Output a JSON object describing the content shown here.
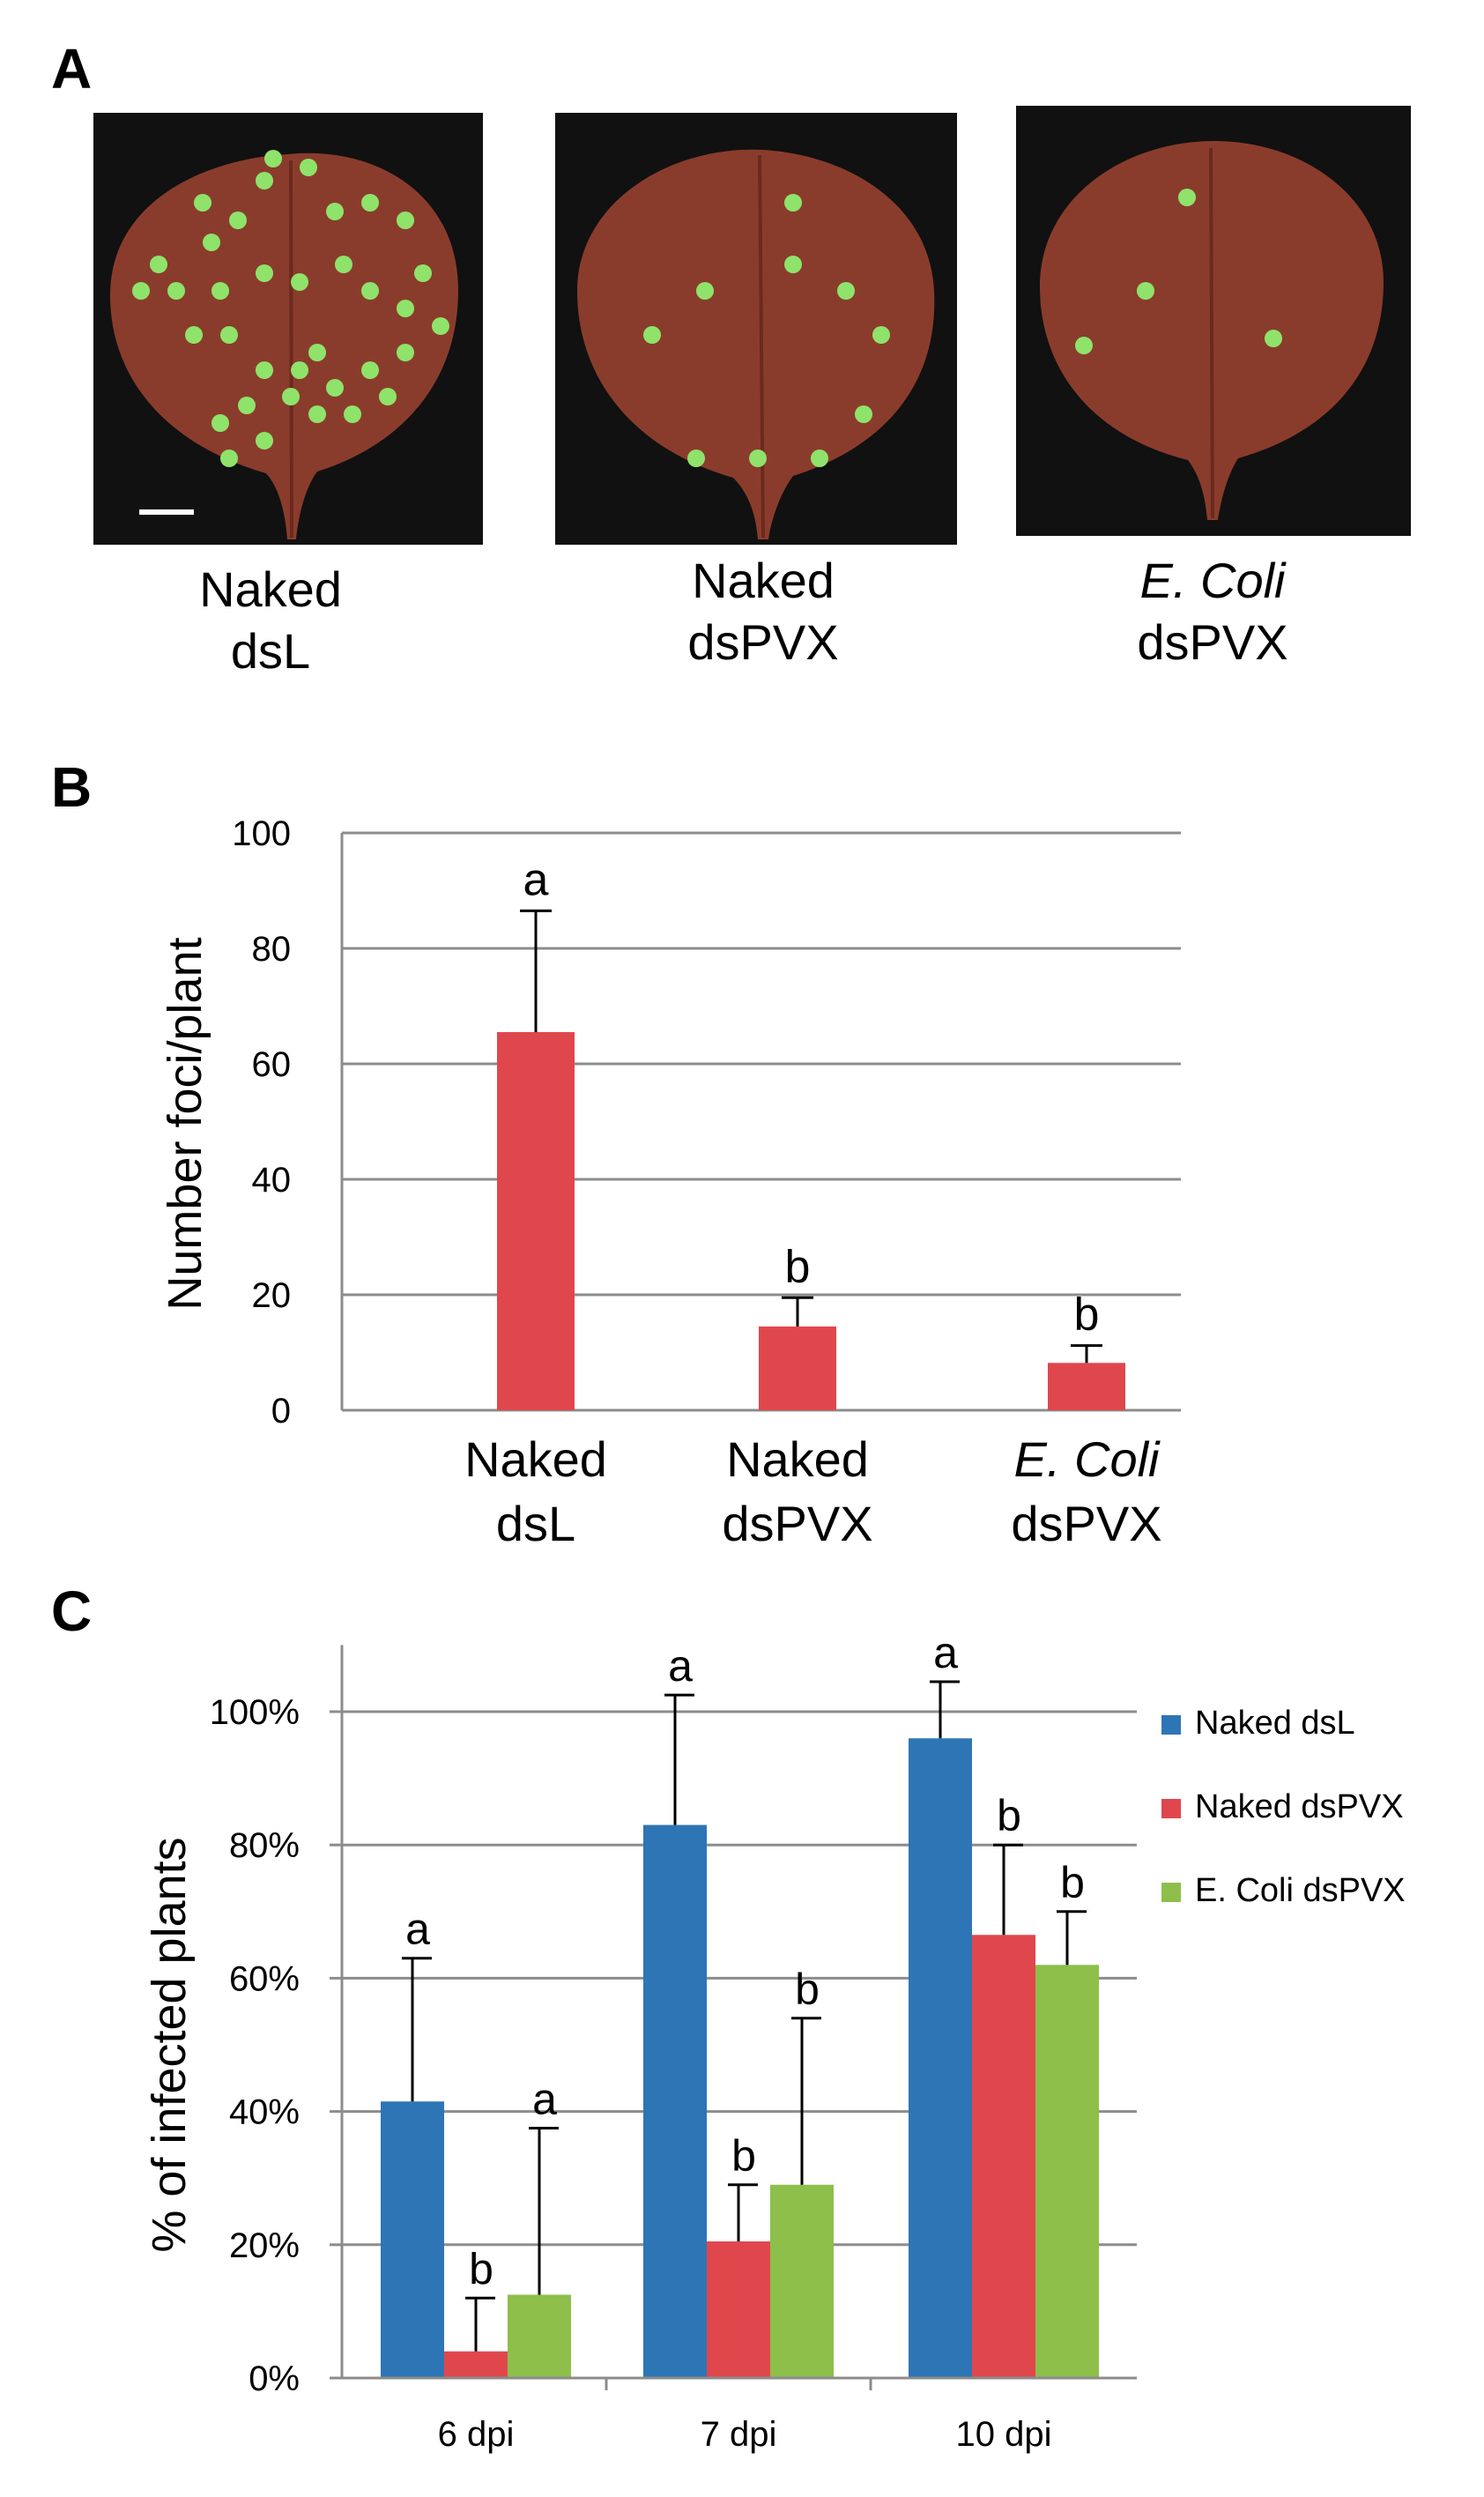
{
  "panels": {
    "a": {
      "label": "A",
      "leaves": [
        {
          "line1": "Naked",
          "line2": "dsL"
        },
        {
          "line1": "Naked",
          "line2": "dsPVX"
        },
        {
          "line1": "E. Coli",
          "line2": "dsPVX"
        }
      ]
    },
    "b": {
      "label": "B"
    },
    "c": {
      "label": "C"
    }
  },
  "colors": {
    "blue": "#2e75b6",
    "red": "#e0474c",
    "green": "#8dbf4a",
    "grid": "#8c8c8c",
    "leaf": "#8a3c2c",
    "leaf_bg": "#111111",
    "foci": "#8fe36a"
  },
  "chart_data": [
    {
      "type": "bar",
      "panel": "B",
      "categories": [
        [
          "Naked",
          "dsL"
        ],
        [
          "Naked",
          "dsPVX"
        ],
        [
          "E. Coli",
          "dsPVX"
        ]
      ],
      "values": [
        65.5,
        14.5,
        8.2
      ],
      "errors": [
        21,
        5,
        3
      ],
      "letters": [
        "a",
        "b",
        "b"
      ],
      "ylabel": "Number foci/plant",
      "ylim": [
        0,
        100
      ],
      "yticks": [
        0,
        20,
        40,
        60,
        80,
        100
      ],
      "ytick_labels": [
        "0",
        "20",
        "40",
        "60",
        "80",
        "100"
      ],
      "grid": true
    },
    {
      "type": "bar",
      "panel": "C",
      "categories": [
        "6 dpi",
        "7 dpi",
        "10 dpi"
      ],
      "series": [
        {
          "name": "Naked dsL",
          "values": [
            41.5,
            83,
            96
          ],
          "errors": [
            21.5,
            19.5,
            8.5
          ],
          "letters": [
            "a",
            "a",
            "a"
          ]
        },
        {
          "name": "Naked dsPVX",
          "values": [
            4,
            20.5,
            66.5
          ],
          "errors": [
            8,
            8.5,
            13.5
          ],
          "letters": [
            "b",
            "b",
            "b"
          ]
        },
        {
          "name": "E. Coli dsPVX",
          "values": [
            12.5,
            29,
            62
          ],
          "errors": [
            25,
            25,
            8
          ],
          "letters": [
            "a",
            "b",
            "b"
          ]
        }
      ],
      "ylabel": "% of infected plants",
      "ylim": [
        0,
        110
      ],
      "yticks": [
        0,
        20,
        40,
        60,
        80,
        100
      ],
      "ytick_labels": [
        "0%",
        "20%",
        "40%",
        "60%",
        "80%",
        "100%"
      ],
      "legend": "right",
      "grid": true
    }
  ]
}
